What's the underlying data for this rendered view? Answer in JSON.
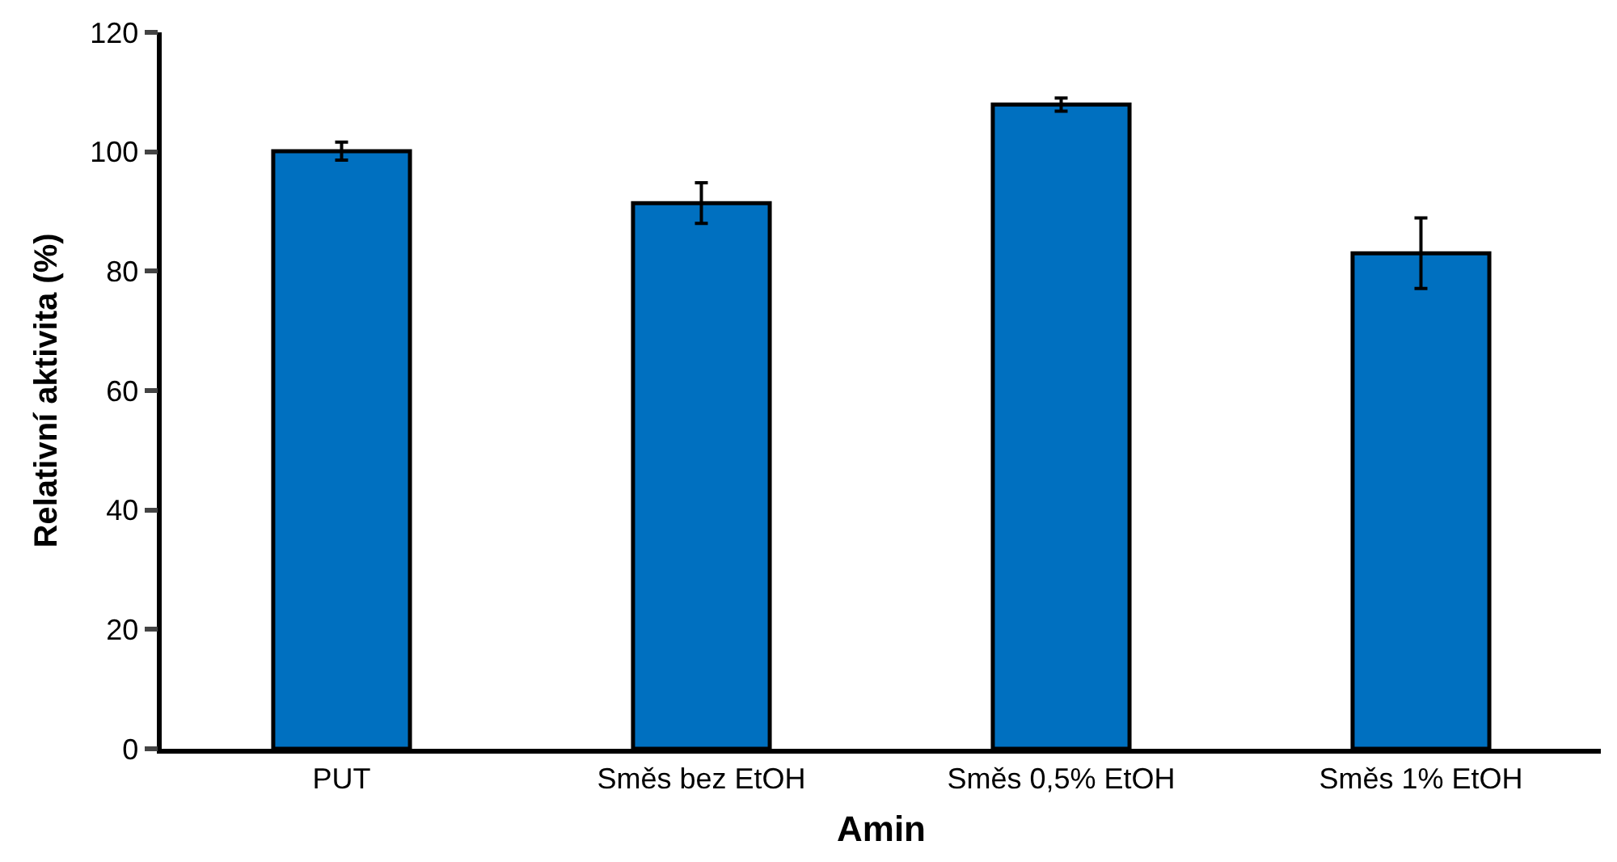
{
  "chart_data": {
    "type": "bar",
    "xlabel": "Amin",
    "ylabel": "Relativní aktivita (%)",
    "categories": [
      "PUT",
      "Směs bez EtOH",
      "Směs 0,5% EtOH",
      "Směs 1% EtOH"
    ],
    "values": [
      100.1,
      91.4,
      107.9,
      83.0
    ],
    "errors": [
      1.5,
      3.4,
      1.1,
      5.9
    ],
    "color": "#0070c0",
    "ylim": [
      0,
      120
    ],
    "yticks": [
      0,
      20,
      40,
      60,
      80,
      100,
      120
    ]
  }
}
